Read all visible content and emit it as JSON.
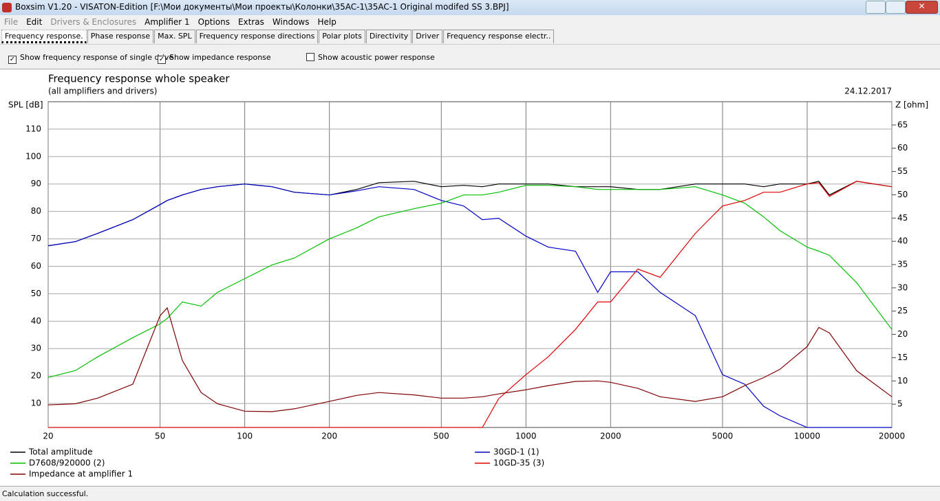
{
  "window": {
    "title": "Boxsim V1.20 - VISATON-Edition [F:\\Мои документы\\Мои проекты\\Колонки\\35AC-1\\35AC-1 Original modifed SS 3.BPJ]"
  },
  "menu": [
    "File",
    "Edit",
    "Drivers & Enclosures",
    "Amplifier 1",
    "Options",
    "Extras",
    "Windows",
    "Help"
  ],
  "tabs": [
    "Frequency response.",
    "Phase response",
    "Max. SPL",
    "Frequency response directions",
    "Polar plots",
    "Directivity",
    "Driver",
    "Frequency response electr.."
  ],
  "options": [
    {
      "label": "Show frequency response of single drive",
      "checked": true
    },
    {
      "label": "Show impedance response",
      "checked": true
    },
    {
      "label": "Show acoustic power response",
      "checked": false
    }
  ],
  "chart_data": {
    "type": "line",
    "title": "Frequency response whole speaker",
    "subtitle": "(all amplifiers and drivers)",
    "date": "24.12.2017",
    "y_label": "SPL [dB]",
    "y2_label": "Z [ohm]",
    "xscale": "log",
    "grid": true,
    "x": [
      20,
      25,
      30,
      40,
      50,
      53,
      60,
      70,
      80,
      100,
      125,
      150,
      200,
      250,
      300,
      400,
      500,
      600,
      700,
      800,
      1000,
      1200,
      1500,
      1800,
      2000,
      2500,
      3000,
      4000,
      5000,
      6000,
      7000,
      8000,
      10000,
      11000,
      12000,
      15000,
      20000
    ],
    "xlim": [
      20,
      20000
    ],
    "xticks": [
      20,
      50,
      100,
      200,
      500,
      1000,
      2000,
      5000,
      10000,
      20000
    ],
    "ylim": [
      1.25,
      120
    ],
    "yticks": [
      10,
      20,
      30,
      40,
      50,
      60,
      70,
      80,
      90,
      100,
      110
    ],
    "y2lim": [
      0,
      70
    ],
    "y2ticks": [
      5,
      10,
      15,
      20,
      25,
      30,
      35,
      40,
      45,
      50,
      55,
      60,
      65
    ],
    "series": [
      {
        "name": "Total amplitude",
        "color": "#000000",
        "values": [
          67.5,
          69,
          72,
          77,
          82.5,
          84,
          86,
          88,
          89,
          90,
          89,
          87,
          86,
          88,
          90.5,
          91,
          89,
          89.5,
          89,
          90,
          90,
          90,
          89,
          89,
          89,
          88,
          88,
          90,
          90,
          90,
          89,
          90,
          90,
          91,
          86,
          91,
          89
        ]
      },
      {
        "name": "30GD-1 (1)",
        "color": "#0000c8",
        "values": [
          67.5,
          69,
          72,
          77,
          82.5,
          84,
          86,
          88,
          89,
          90,
          89,
          87,
          86,
          87.5,
          89,
          88,
          84,
          82,
          77,
          77.5,
          71,
          67,
          65.5,
          50.5,
          58,
          58,
          50.5,
          42,
          20.5,
          17,
          9,
          5.5,
          1.25,
          1.25,
          1.25,
          1.25,
          1.25
        ]
      },
      {
        "name": "D7608/920000 (2)",
        "color": "#00c000",
        "values": [
          19.5,
          22,
          27,
          34,
          39,
          41,
          47,
          45.5,
          50.5,
          55.5,
          60.5,
          63,
          70,
          74,
          78,
          81,
          83,
          86,
          86,
          87,
          89.5,
          89.5,
          89,
          88,
          88,
          88,
          88,
          89,
          86,
          83,
          78,
          73,
          67,
          65.5,
          64,
          54,
          37
        ]
      },
      {
        "name": "10GD-35 (3)",
        "color": "#e00000",
        "values": [
          1.25,
          1.25,
          1.25,
          1.25,
          1.25,
          1.25,
          1.25,
          1.25,
          1.25,
          1.25,
          1.25,
          1.25,
          1.25,
          1.25,
          1.25,
          1.25,
          1.25,
          1.25,
          1.25,
          11.75,
          20.5,
          27,
          37,
          47,
          47,
          59,
          56,
          72,
          82,
          84,
          87,
          87,
          90,
          90.5,
          85.5,
          91,
          89
        ]
      },
      {
        "name": "Impedance at amplifier 1",
        "color": "#800000",
        "axis": "y2",
        "values": [
          4.85,
          5.1,
          6.3,
          9.3,
          24,
          25.7,
          14.4,
          7.5,
          5.1,
          3.5,
          3.4,
          4,
          5.6,
          6.9,
          7.5,
          7,
          6.3,
          6.3,
          6.6,
          7.2,
          8.1,
          9,
          9.9,
          10,
          9.7,
          8.4,
          6.6,
          5.6,
          6.6,
          9,
          10.7,
          12.5,
          17.4,
          21.5,
          20.3,
          12.2,
          6.6
        ]
      }
    ]
  },
  "status": "Calculation successful."
}
